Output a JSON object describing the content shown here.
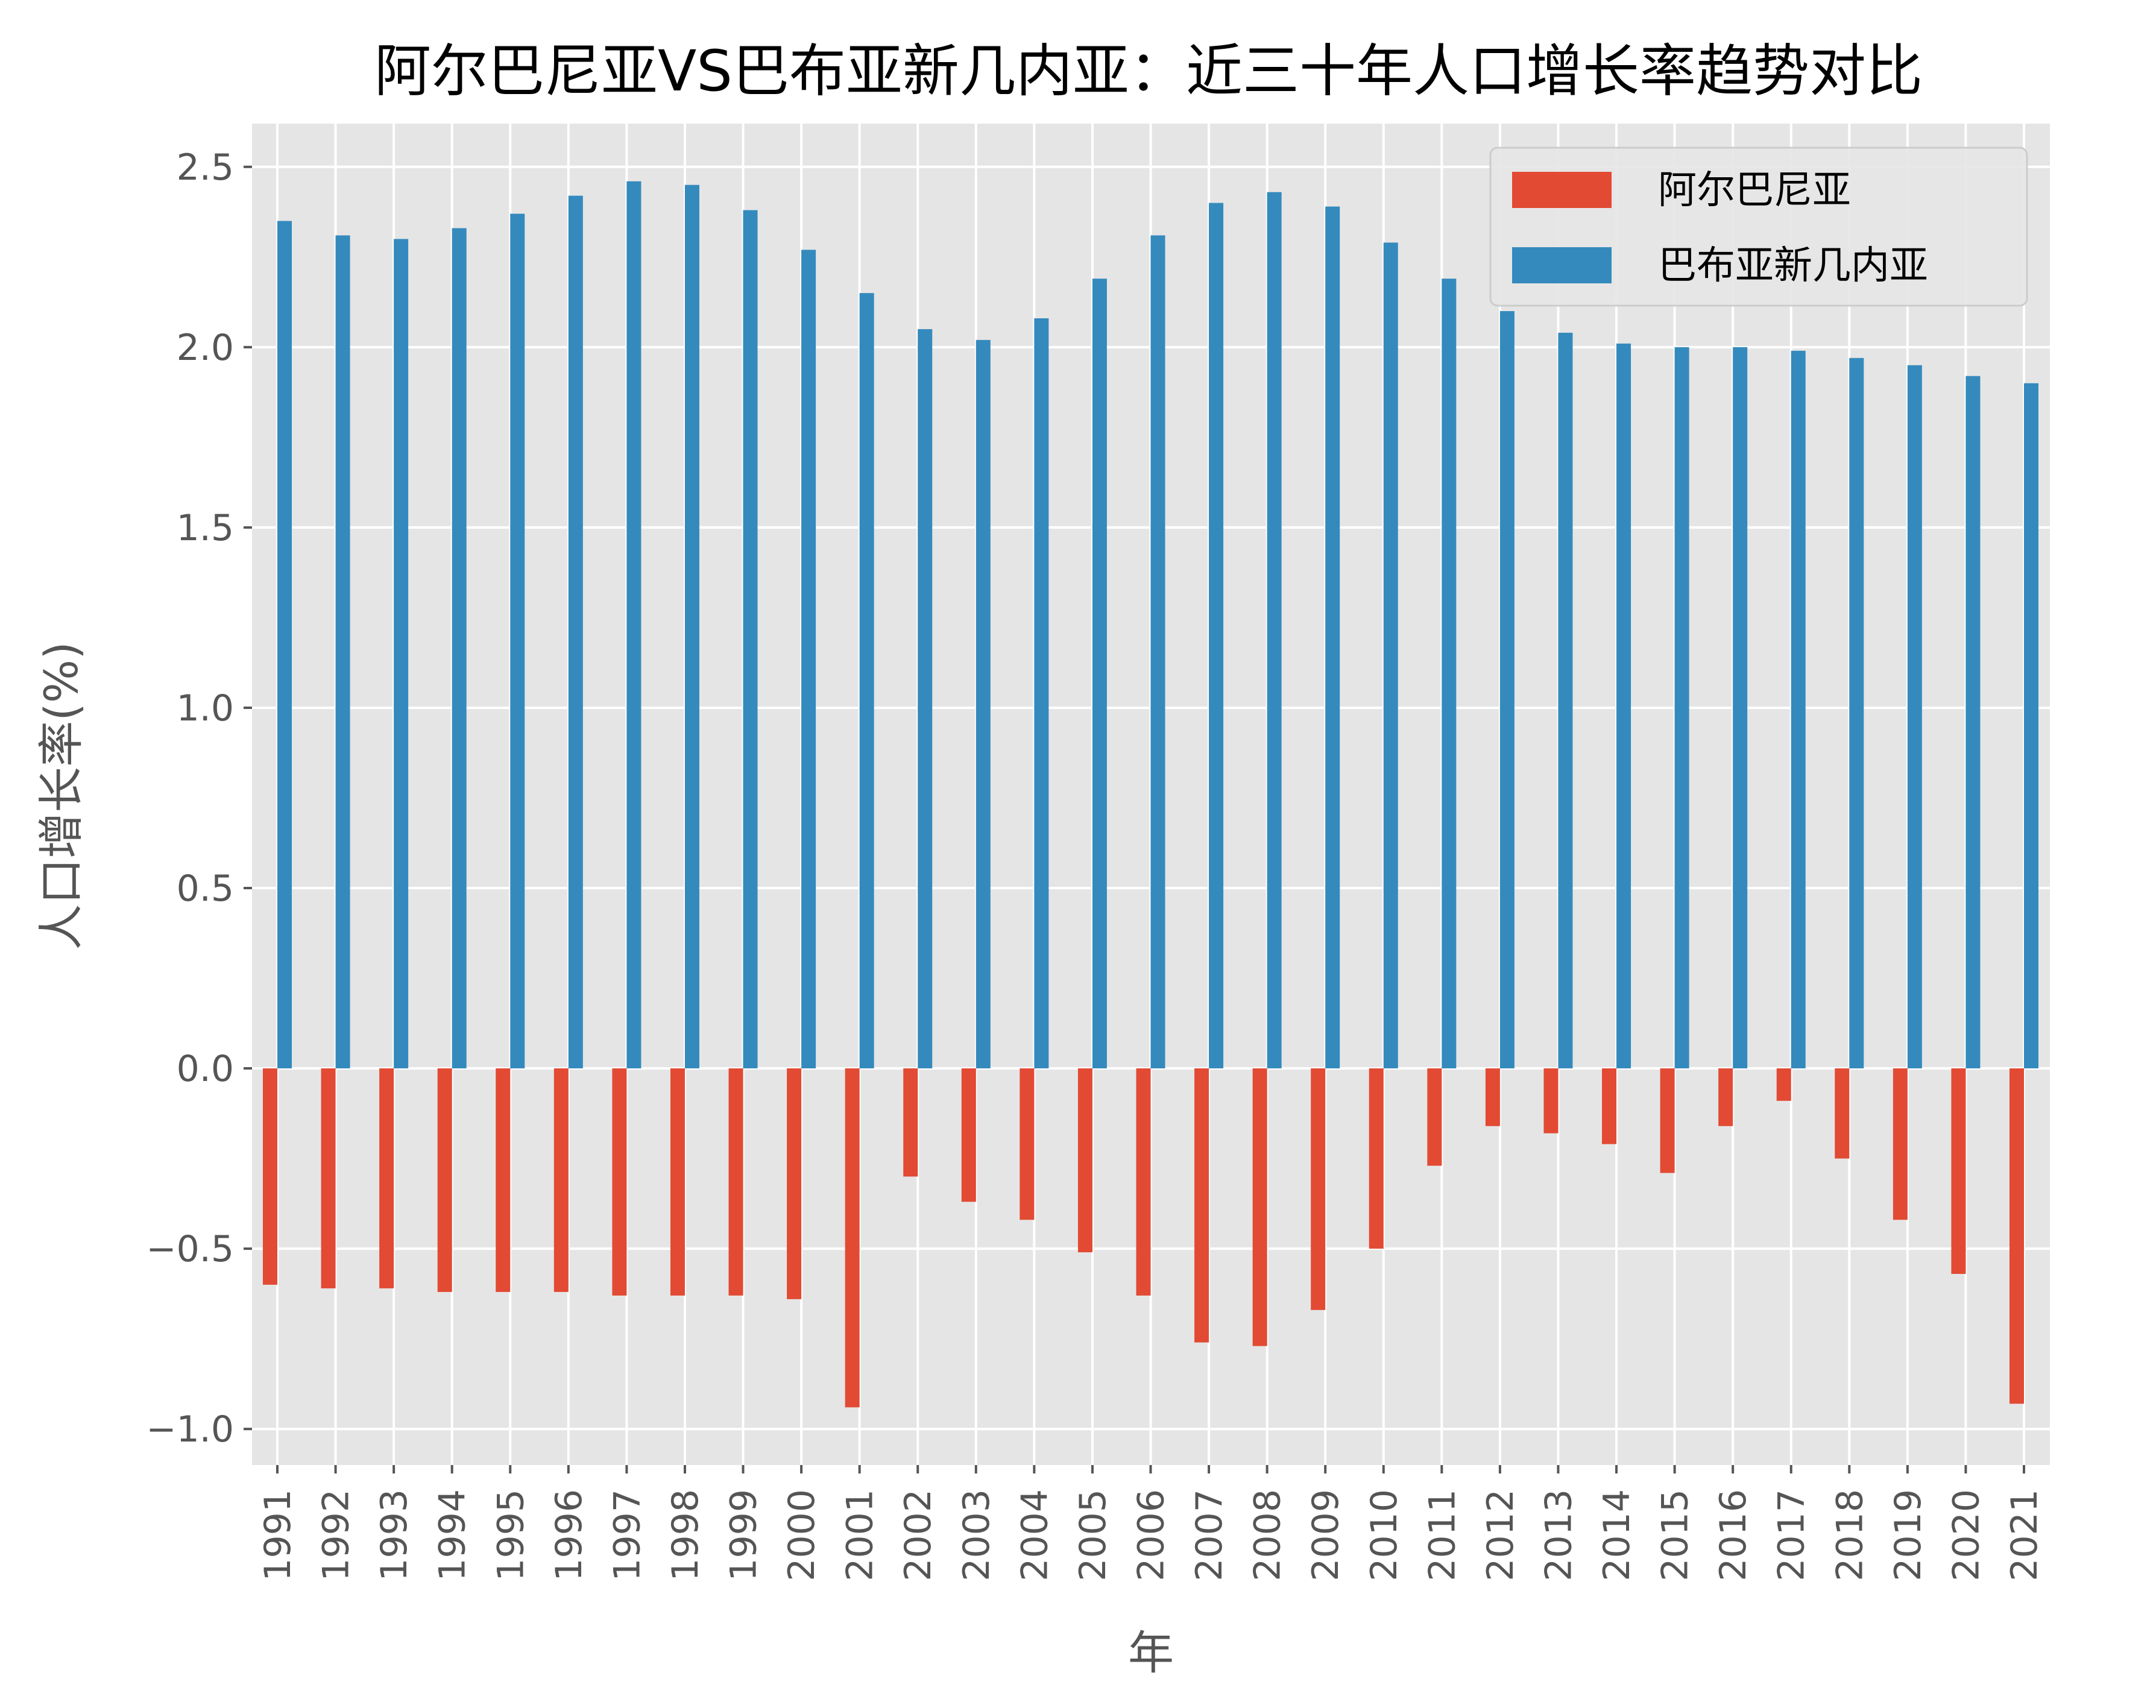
{
  "chart_data": {
    "type": "bar",
    "title": "阿尔巴尼亚VS巴布亚新几内亚：近三十年人口增长率趋势对比",
    "xlabel": "年",
    "ylabel": "人口增长率(%)",
    "categories": [
      "1991",
      "1992",
      "1993",
      "1994",
      "1995",
      "1996",
      "1997",
      "1998",
      "1999",
      "2000",
      "2001",
      "2002",
      "2003",
      "2004",
      "2005",
      "2006",
      "2007",
      "2008",
      "2009",
      "2010",
      "2011",
      "2012",
      "2013",
      "2014",
      "2015",
      "2016",
      "2017",
      "2018",
      "2019",
      "2020",
      "2021"
    ],
    "ylim": [
      -1.1,
      2.62
    ],
    "yticks": [
      -1.0,
      -0.5,
      0.0,
      0.5,
      1.0,
      1.5,
      2.0,
      2.5
    ],
    "ytick_labels": [
      "−1.0",
      "−0.5",
      "0.0",
      "0.5",
      "1.0",
      "1.5",
      "2.0",
      "2.5"
    ],
    "grid": true,
    "legend_position": "top-right",
    "series": [
      {
        "name": "阿尔巴尼亚",
        "color": "#E24A33",
        "values": [
          -0.6,
          -0.61,
          -0.61,
          -0.62,
          -0.62,
          -0.62,
          -0.63,
          -0.63,
          -0.63,
          -0.64,
          -0.94,
          -0.3,
          -0.37,
          -0.42,
          -0.51,
          -0.63,
          -0.76,
          -0.77,
          -0.67,
          -0.5,
          -0.27,
          -0.16,
          -0.18,
          -0.21,
          -0.29,
          -0.16,
          -0.09,
          -0.25,
          -0.42,
          -0.57,
          -0.93
        ]
      },
      {
        "name": "巴布亚新几内亚",
        "color": "#348ABD",
        "values": [
          2.35,
          2.31,
          2.3,
          2.33,
          2.37,
          2.42,
          2.46,
          2.45,
          2.38,
          2.27,
          2.15,
          2.05,
          2.02,
          2.08,
          2.19,
          2.31,
          2.4,
          2.43,
          2.39,
          2.29,
          2.19,
          2.1,
          2.04,
          2.01,
          2.0,
          2.0,
          1.99,
          1.97,
          1.95,
          1.92,
          1.9
        ]
      }
    ]
  }
}
